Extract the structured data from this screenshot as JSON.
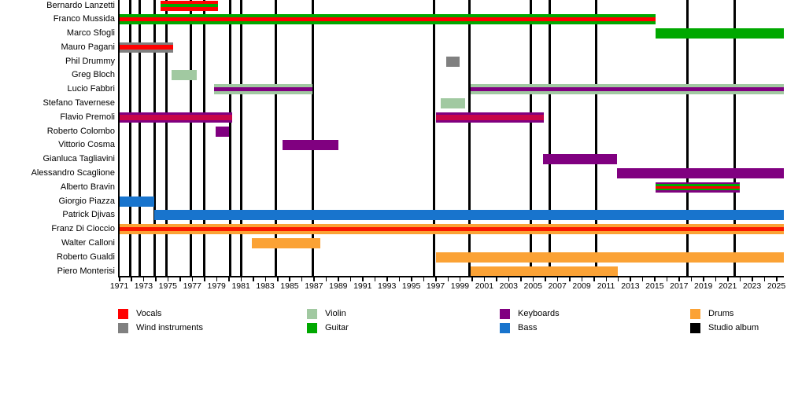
{
  "chart_data": {
    "type": "timeline",
    "description": "Band members timeline (gantt-style) with instrument color bars and studio-album vertical lines",
    "x_axis": {
      "start": 1971,
      "end": 2025,
      "minor_tick_every": 1,
      "label_every": 2,
      "labels": [
        "1971",
        "1973",
        "1975",
        "1977",
        "1979",
        "1981",
        "1983",
        "1985",
        "1987",
        "1989",
        "1991",
        "1993",
        "1995",
        "1997",
        "1999",
        "2001",
        "2003",
        "2005",
        "2007",
        "2009",
        "2011",
        "2013",
        "2015",
        "2017",
        "2019",
        "2021",
        "2023",
        "2025"
      ]
    },
    "colors": {
      "vocals": "#ff0000",
      "wind": "#808080",
      "violin": "#a1c9a1",
      "guitar": "#00a800",
      "keyboards": "#800080",
      "bass": "#1874cd",
      "drums": "#fba235",
      "vocals_warm": "#fa1900",
      "vocals_crimson": "#c70549",
      "album": "#000000"
    },
    "legend": [
      {
        "label": "Vocals",
        "color_key": "vocals"
      },
      {
        "label": "Wind instruments",
        "color_key": "wind"
      },
      {
        "label": "Violin",
        "color_key": "violin"
      },
      {
        "label": "Guitar",
        "color_key": "guitar"
      },
      {
        "label": "Keyboards",
        "color_key": "keyboards"
      },
      {
        "label": "Bass",
        "color_key": "bass"
      },
      {
        "label": "Drums",
        "color_key": "drums"
      },
      {
        "label": "Studio album",
        "color_key": "album"
      }
    ],
    "album_lines_years": [
      1971.9,
      1972.7,
      1973.9,
      1974.9,
      1976.9,
      1978.0,
      1980.1,
      1981.0,
      1983.9,
      1986.9,
      1996.9,
      1999.8,
      2004.8,
      2006.4,
      2010.2,
      2017.7,
      2021.6
    ],
    "members": [
      {
        "name": "Bernardo Lanzetti",
        "bars": [
          {
            "start": 1974.4,
            "end": 1979.1,
            "stripes": [
              {
                "c": "vocals",
                "w": 4
              },
              {
                "c": "guitar",
                "w": 4
              },
              {
                "c": "vocals",
                "w": 5
              }
            ]
          }
        ]
      },
      {
        "name": "Franco Mussida",
        "bars": [
          {
            "start": 1971.0,
            "end": 2015.1,
            "stripes": [
              {
                "c": "guitar",
                "w": 4
              },
              {
                "c": "vocals",
                "w": 5
              },
              {
                "c": "guitar",
                "w": 4
              }
            ]
          }
        ]
      },
      {
        "name": "Marco Sfogli",
        "bars": [
          {
            "start": 2015.1,
            "end": 2025.6,
            "stripes": [
              {
                "c": "guitar",
                "w": 13
              }
            ]
          }
        ]
      },
      {
        "name": "Mauro Pagani",
        "bars": [
          {
            "start": 1971.0,
            "end": 1975.4,
            "stripes": [
              {
                "c": "wind",
                "w": 3.5
              },
              {
                "c": "vocals",
                "w": 6
              },
              {
                "c": "wind",
                "w": 3.5
              }
            ]
          }
        ]
      },
      {
        "name": "Phil Drummy",
        "bars": [
          {
            "start": 1997.9,
            "end": 1999.0,
            "stripes": [
              {
                "c": "wind",
                "w": 13
              }
            ]
          }
        ]
      },
      {
        "name": "Greg Bloch",
        "bars": [
          {
            "start": 1975.3,
            "end": 1977.4,
            "stripes": [
              {
                "c": "violin",
                "w": 13
              }
            ]
          }
        ]
      },
      {
        "name": "Lucio Fabbri",
        "bars": [
          {
            "start": 1978.8,
            "end": 1986.9,
            "stripes": [
              {
                "c": "violin",
                "w": 4
              },
              {
                "c": "keyboards",
                "w": 5
              },
              {
                "c": "violin",
                "w": 4
              }
            ]
          },
          {
            "start": 1999.9,
            "end": 2025.6,
            "stripes": [
              {
                "c": "violin",
                "w": 4
              },
              {
                "c": "keyboards",
                "w": 5
              },
              {
                "c": "violin",
                "w": 4
              }
            ]
          }
        ]
      },
      {
        "name": "Stefano Tavernese",
        "bars": [
          {
            "start": 1997.4,
            "end": 1999.4,
            "stripes": [
              {
                "c": "violin",
                "w": 13
              }
            ]
          }
        ]
      },
      {
        "name": "Flavio Premoli",
        "bars": [
          {
            "start": 1971.0,
            "end": 1980.3,
            "stripes": [
              {
                "c": "keyboards",
                "w": 3
              },
              {
                "c": "vocals_crimson",
                "w": 7
              },
              {
                "c": "keyboards",
                "w": 3
              }
            ]
          },
          {
            "start": 1997.0,
            "end": 2005.9,
            "stripes": [
              {
                "c": "keyboards",
                "w": 3
              },
              {
                "c": "vocals_crimson",
                "w": 7
              },
              {
                "c": "keyboards",
                "w": 3
              }
            ]
          }
        ]
      },
      {
        "name": "Roberto Colombo",
        "bars": [
          {
            "start": 1978.9,
            "end": 1980.0,
            "stripes": [
              {
                "c": "keyboards",
                "w": 13
              }
            ]
          }
        ]
      },
      {
        "name": "Vittorio Cosma",
        "bars": [
          {
            "start": 1984.4,
            "end": 1989.0,
            "stripes": [
              {
                "c": "keyboards",
                "w": 13
              }
            ]
          }
        ]
      },
      {
        "name": "Gianluca Tagliavini",
        "bars": [
          {
            "start": 2005.8,
            "end": 2011.9,
            "stripes": [
              {
                "c": "keyboards",
                "w": 13
              }
            ]
          }
        ]
      },
      {
        "name": "Alessandro Scaglione",
        "bars": [
          {
            "start": 2011.9,
            "end": 2025.6,
            "stripes": [
              {
                "c": "keyboards",
                "w": 13
              }
            ]
          }
        ]
      },
      {
        "name": "Alberto Bravin",
        "bars": [
          {
            "start": 2015.1,
            "end": 2022.0,
            "stripes": [
              {
                "c": "keyboards",
                "w": 2.5
              },
              {
                "c": "guitar",
                "w": 2.5
              },
              {
                "c": "vocals",
                "w": 3
              },
              {
                "c": "guitar",
                "w": 2.5
              },
              {
                "c": "keyboards",
                "w": 2.5
              }
            ]
          }
        ]
      },
      {
        "name": "Giorgio Piazza",
        "bars": [
          {
            "start": 1971.0,
            "end": 1973.9,
            "stripes": [
              {
                "c": "bass",
                "w": 13
              }
            ]
          }
        ]
      },
      {
        "name": "Patrick Djivas",
        "bars": [
          {
            "start": 1973.9,
            "end": 2025.6,
            "stripes": [
              {
                "c": "bass",
                "w": 13
              }
            ]
          }
        ]
      },
      {
        "name": "Franz Di Cioccio",
        "bars": [
          {
            "start": 1971.0,
            "end": 2025.6,
            "stripes": [
              {
                "c": "drums",
                "w": 4
              },
              {
                "c": "vocals_warm",
                "w": 5
              },
              {
                "c": "drums",
                "w": 4
              }
            ]
          }
        ]
      },
      {
        "name": "Walter Calloni",
        "bars": [
          {
            "start": 1981.9,
            "end": 1987.5,
            "stripes": [
              {
                "c": "drums",
                "w": 13
              }
            ]
          }
        ]
      },
      {
        "name": "Roberto Gualdi",
        "bars": [
          {
            "start": 1997.0,
            "end": 2025.6,
            "stripes": [
              {
                "c": "drums",
                "w": 13
              }
            ]
          }
        ]
      },
      {
        "name": "Piero Monterisi",
        "bars": [
          {
            "start": 1999.9,
            "end": 2012.0,
            "stripes": [
              {
                "c": "drums",
                "w": 13
              }
            ]
          }
        ]
      }
    ]
  }
}
